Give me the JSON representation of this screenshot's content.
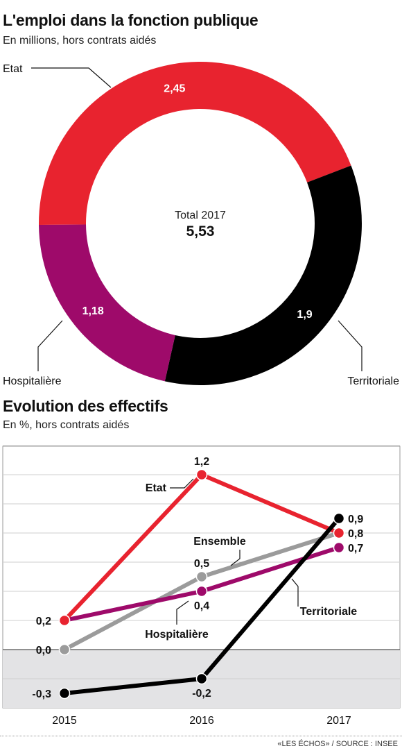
{
  "colors": {
    "etat": "#e8232f",
    "territoriale": "#000000",
    "hospitaliere": "#9e0a6a",
    "ensemble": "#9b9b9b"
  },
  "donut": {
    "title": "L'emploi dans la fonction publique",
    "subtitle": "En millions, hors contrats aidés",
    "total_label": "Total 2017",
    "total_value": "5,53",
    "chart_data": {
      "type": "pie",
      "total": 5.53,
      "slices": [
        {
          "name": "Etat",
          "value": 2.45,
          "value_label": "2,45",
          "color": "#e8232f"
        },
        {
          "name": "Territoriale",
          "value": 1.9,
          "value_label": "1,9",
          "color": "#000000"
        },
        {
          "name": "Hospitalière",
          "value": 1.18,
          "value_label": "1,18",
          "color": "#9e0a6a"
        }
      ]
    }
  },
  "line": {
    "title": "Evolution des effectifs",
    "subtitle": "En %, hors contrats aidés",
    "chart_data": {
      "type": "line",
      "x": [
        "2015",
        "2016",
        "2017"
      ],
      "ylim": [
        -0.4,
        1.5
      ],
      "grid": true,
      "series": [
        {
          "name": "Etat",
          "values": [
            0.2,
            1.2,
            0.8
          ],
          "labels": [
            "0,2",
            "1,2",
            "0,8"
          ],
          "color": "#e8232f"
        },
        {
          "name": "Ensemble",
          "values": [
            0.0,
            0.5,
            0.8
          ],
          "labels": [
            "0,0",
            "0,5",
            "0,8"
          ],
          "color": "#9b9b9b"
        },
        {
          "name": "Hospitalière",
          "values": [
            0.2,
            0.4,
            0.7
          ],
          "labels": [
            "0,2",
            "0,4",
            "0,7"
          ],
          "color": "#9e0a6a"
        },
        {
          "name": "Territoriale",
          "values": [
            -0.3,
            -0.2,
            0.9
          ],
          "labels": [
            "-0,3",
            "-0,2",
            "0,9"
          ],
          "color": "#000000"
        }
      ]
    }
  },
  "footer": "«LES ÉCHOS» / SOURCE : INSEE"
}
